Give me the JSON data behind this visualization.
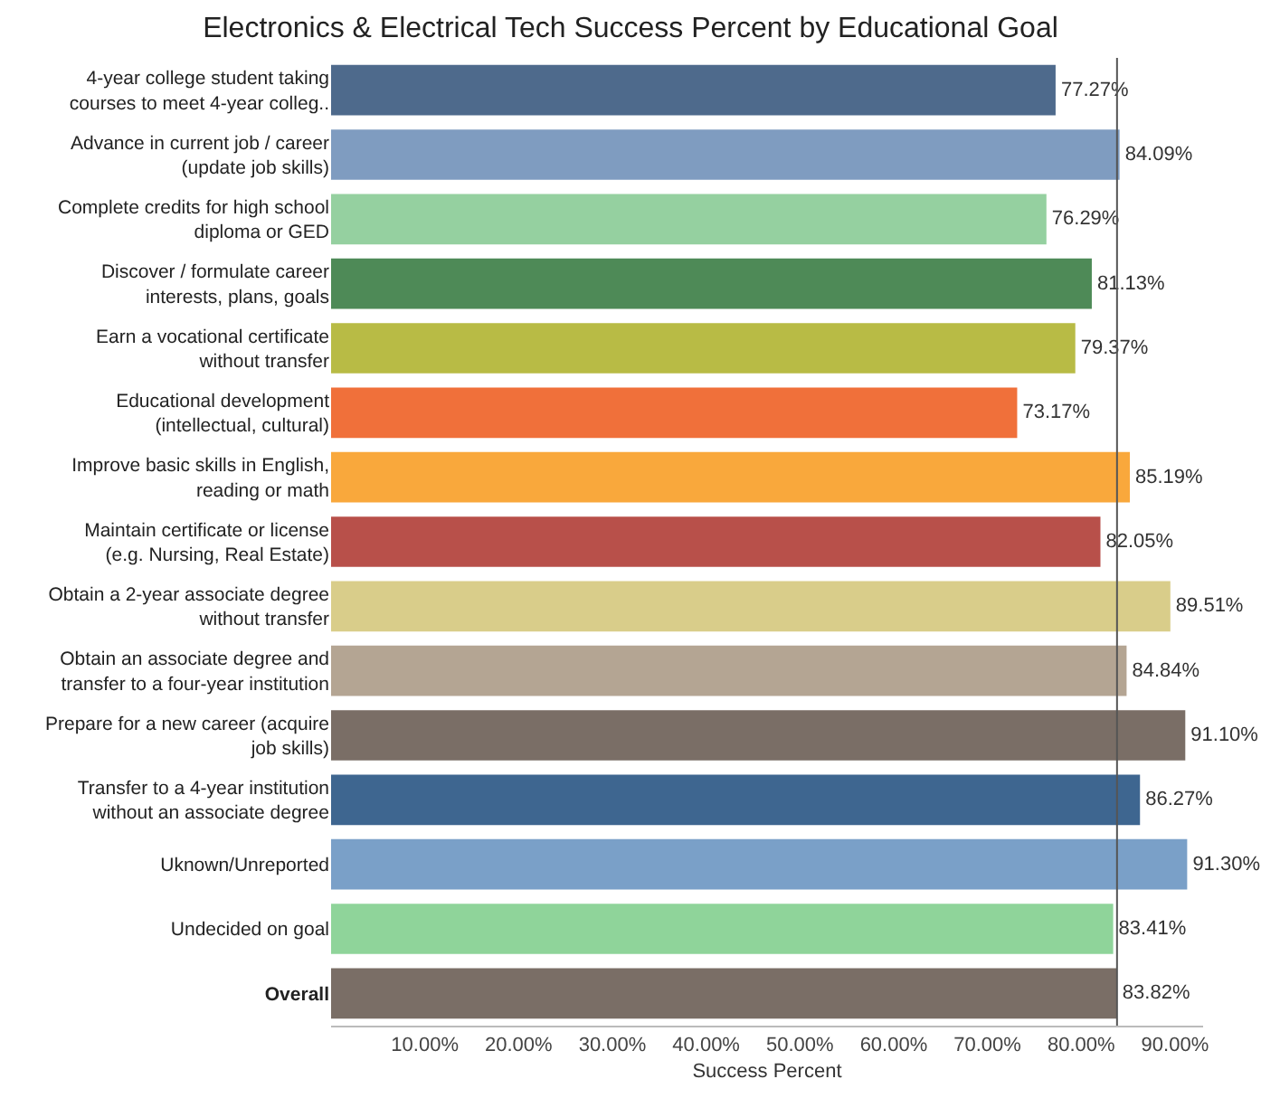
{
  "chart_data": {
    "type": "bar",
    "orientation": "horizontal",
    "title": "Electronics & Electrical Tech Success Percent by Educational Goal",
    "xlabel": "Success Percent",
    "categories": [
      "4-year college student taking courses to meet 4-year colleg..",
      "Advance in current job / career (update job skills)",
      "Complete credits for high school diploma or GED",
      "Discover / formulate career interests, plans, goals",
      "Earn a vocational certificate without transfer",
      "Educational development (intellectual, cultural)",
      "Improve basic skills in English, reading or math",
      "Maintain certificate or license (e.g. Nursing, Real Estate)",
      "Obtain a 2-year associate degree without transfer",
      "Obtain an associate degree and transfer to a four-year institution",
      "Prepare for a new career (acquire job skills)",
      "Transfer to a 4-year institution without an associate degree",
      "Uknown/Unreported",
      "Undecided on goal",
      "Overall"
    ],
    "values": [
      77.27,
      84.09,
      76.29,
      81.13,
      79.37,
      73.17,
      85.19,
      82.05,
      89.51,
      84.84,
      91.1,
      86.27,
      91.3,
      83.41,
      83.82
    ],
    "value_labels": [
      "77.27%",
      "84.09%",
      "76.29%",
      "81.13%",
      "79.37%",
      "73.17%",
      "85.19%",
      "82.05%",
      "89.51%",
      "84.84%",
      "91.10%",
      "86.27%",
      "91.30%",
      "83.41%",
      "83.82%"
    ],
    "colors": [
      "#4e6a8c",
      "#7f9cc0",
      "#95d0a0",
      "#4e8a57",
      "#b8bb45",
      "#f0703a",
      "#f9a83c",
      "#b8504a",
      "#d9cd8a",
      "#b4a593",
      "#7a6e66",
      "#3e6690",
      "#7aa0c8",
      "#8fd49a",
      "#7a6e66"
    ],
    "xlim": [
      0,
      93
    ],
    "xticks": [
      {
        "value": 10,
        "label": "10.00%"
      },
      {
        "value": 20,
        "label": "20.00%"
      },
      {
        "value": 30,
        "label": "30.00%"
      },
      {
        "value": 40,
        "label": "40.00%"
      },
      {
        "value": 50,
        "label": "50.00%"
      },
      {
        "value": 60,
        "label": "60.00%"
      },
      {
        "value": 70,
        "label": "70.00%"
      },
      {
        "value": 80,
        "label": "80.00%"
      },
      {
        "value": 90,
        "label": "90.00%"
      }
    ],
    "ref_lines": [
      {
        "axis": "x",
        "value": 83.82,
        "color": "#555555"
      }
    ],
    "grid": false
  }
}
